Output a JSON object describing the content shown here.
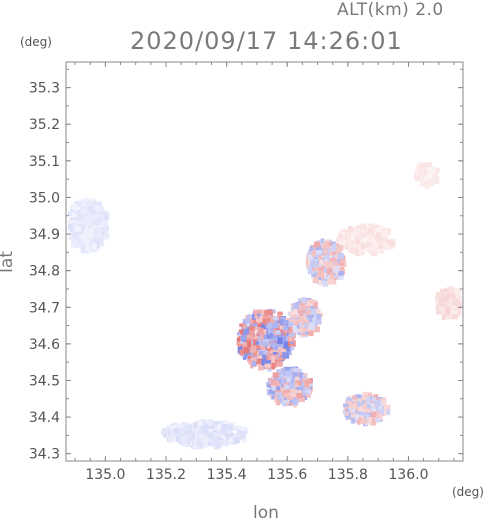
{
  "header": {
    "altitude": "ALT(km)  2.0",
    "timestamp": "2020/09/17 14:26:01"
  },
  "axes": {
    "y_unit": "(deg)",
    "x_unit": "(deg)"
  },
  "colors": {
    "positive": "#e05050",
    "negative": "#5060e0",
    "axis": "#888888"
  },
  "chart_data": {
    "type": "heatmap",
    "title": "2020/09/17 14:26:01",
    "xlabel": "lon",
    "ylabel": "lat",
    "xlim": [
      134.87,
      136.18
    ],
    "ylim": [
      34.28,
      35.37
    ],
    "x_ticks": [
      135.0,
      135.2,
      135.4,
      135.6,
      135.8,
      136.0
    ],
    "x_tick_labels": [
      "135.0",
      "135.2",
      "135.4",
      "135.6",
      "135.8",
      "136.0"
    ],
    "y_ticks": [
      34.3,
      34.4,
      34.5,
      34.6,
      34.7,
      34.8,
      34.9,
      35.0,
      35.1,
      35.2,
      35.3
    ],
    "y_tick_labels": [
      "34.3",
      "34.4",
      "34.5",
      "34.6",
      "34.7",
      "34.8",
      "34.9",
      "35.0",
      "35.1",
      "35.2",
      "35.3"
    ],
    "grid": false,
    "echo_regions": [
      {
        "lon": 134.93,
        "lat": 34.93,
        "rlon": 0.07,
        "rlat": 0.07,
        "sign": "negative",
        "intensity": 0.35
      },
      {
        "lon": 135.32,
        "lat": 34.36,
        "rlon": 0.14,
        "rlat": 0.035,
        "sign": "negative",
        "intensity": 0.4
      },
      {
        "lon": 135.85,
        "lat": 34.89,
        "rlon": 0.09,
        "rlat": 0.04,
        "sign": "positive",
        "intensity": 0.35
      },
      {
        "lon": 135.85,
        "lat": 34.43,
        "rlon": 0.07,
        "rlat": 0.04,
        "sign": "mixed",
        "intensity": 0.45
      },
      {
        "lon": 136.05,
        "lat": 35.07,
        "rlon": 0.035,
        "rlat": 0.03,
        "sign": "positive",
        "intensity": 0.3
      },
      {
        "lon": 136.13,
        "lat": 34.72,
        "rlon": 0.05,
        "rlat": 0.04,
        "sign": "positive",
        "intensity": 0.45
      },
      {
        "lon": 135.52,
        "lat": 34.62,
        "rlon": 0.09,
        "rlat": 0.08,
        "sign": "mixed",
        "intensity": 0.8
      },
      {
        "lon": 135.6,
        "lat": 34.49,
        "rlon": 0.07,
        "rlat": 0.05,
        "sign": "mixed",
        "intensity": 0.6
      },
      {
        "lon": 135.72,
        "lat": 34.83,
        "rlon": 0.06,
        "rlat": 0.06,
        "sign": "mixed",
        "intensity": 0.5
      },
      {
        "lon": 135.65,
        "lat": 34.68,
        "rlon": 0.05,
        "rlat": 0.05,
        "sign": "mixed",
        "intensity": 0.5
      }
    ]
  }
}
